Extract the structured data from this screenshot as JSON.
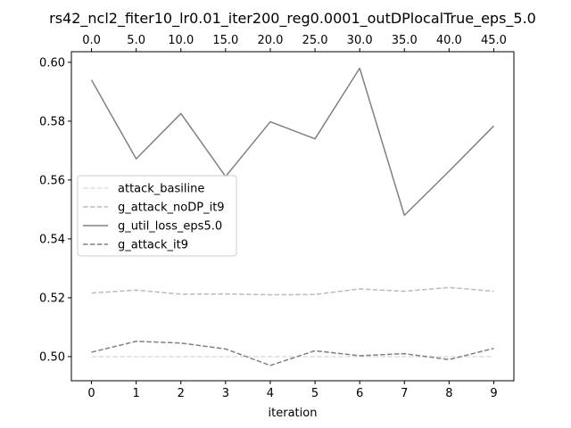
{
  "chart_data": {
    "type": "line",
    "title": "rs42_ncl2_fiter10_lr0.01_iter200_reg0.0001_outDPlocalTrue_eps_5.0",
    "xlabel": "iteration",
    "ylabel": "",
    "x": [
      0,
      1,
      2,
      3,
      4,
      5,
      6,
      7,
      8,
      9
    ],
    "xlim": [
      -0.45,
      9.45
    ],
    "ylim": [
      0.4918,
      0.6036
    ],
    "x_ticks": [
      0,
      1,
      2,
      3,
      4,
      5,
      6,
      7,
      8,
      9
    ],
    "y_ticks": [
      0.5,
      0.52,
      0.54,
      0.56,
      0.58,
      0.6
    ],
    "y_tick_labels": [
      "0.50",
      "0.52",
      "0.54",
      "0.56",
      "0.58",
      "0.60"
    ],
    "top_axis_ticks": [
      "0.0",
      "5.0",
      "10.0",
      "15.0",
      "20.0",
      "25.0",
      "30.0",
      "35.0",
      "40.0",
      "45.0"
    ],
    "grid": false,
    "legend_position": "center-left",
    "series": [
      {
        "name": "attack_basiline",
        "color": "#dddddd",
        "dash": "dashed",
        "values": [
          0.5,
          0.5,
          0.5,
          0.5,
          0.5,
          0.5,
          0.5,
          0.5,
          0.5,
          0.5
        ]
      },
      {
        "name": "g_attack_noDP_it9",
        "color": "#bbbbbb",
        "dash": "dashed",
        "values": [
          0.5216,
          0.5226,
          0.5212,
          0.5213,
          0.521,
          0.5211,
          0.523,
          0.5222,
          0.5235,
          0.5222
        ]
      },
      {
        "name": "g_util_loss_eps5.0",
        "color": "#808080",
        "dash": "solid",
        "values": [
          0.594,
          0.5672,
          0.5826,
          0.5612,
          0.5798,
          0.574,
          0.598,
          0.548,
          0.563,
          0.5784
        ]
      },
      {
        "name": "g_attack_it9",
        "color": "#808080",
        "dash": "dashed",
        "values": [
          0.5015,
          0.5052,
          0.5046,
          0.5026,
          0.497,
          0.502,
          0.5003,
          0.501,
          0.499,
          0.5028
        ]
      }
    ]
  }
}
